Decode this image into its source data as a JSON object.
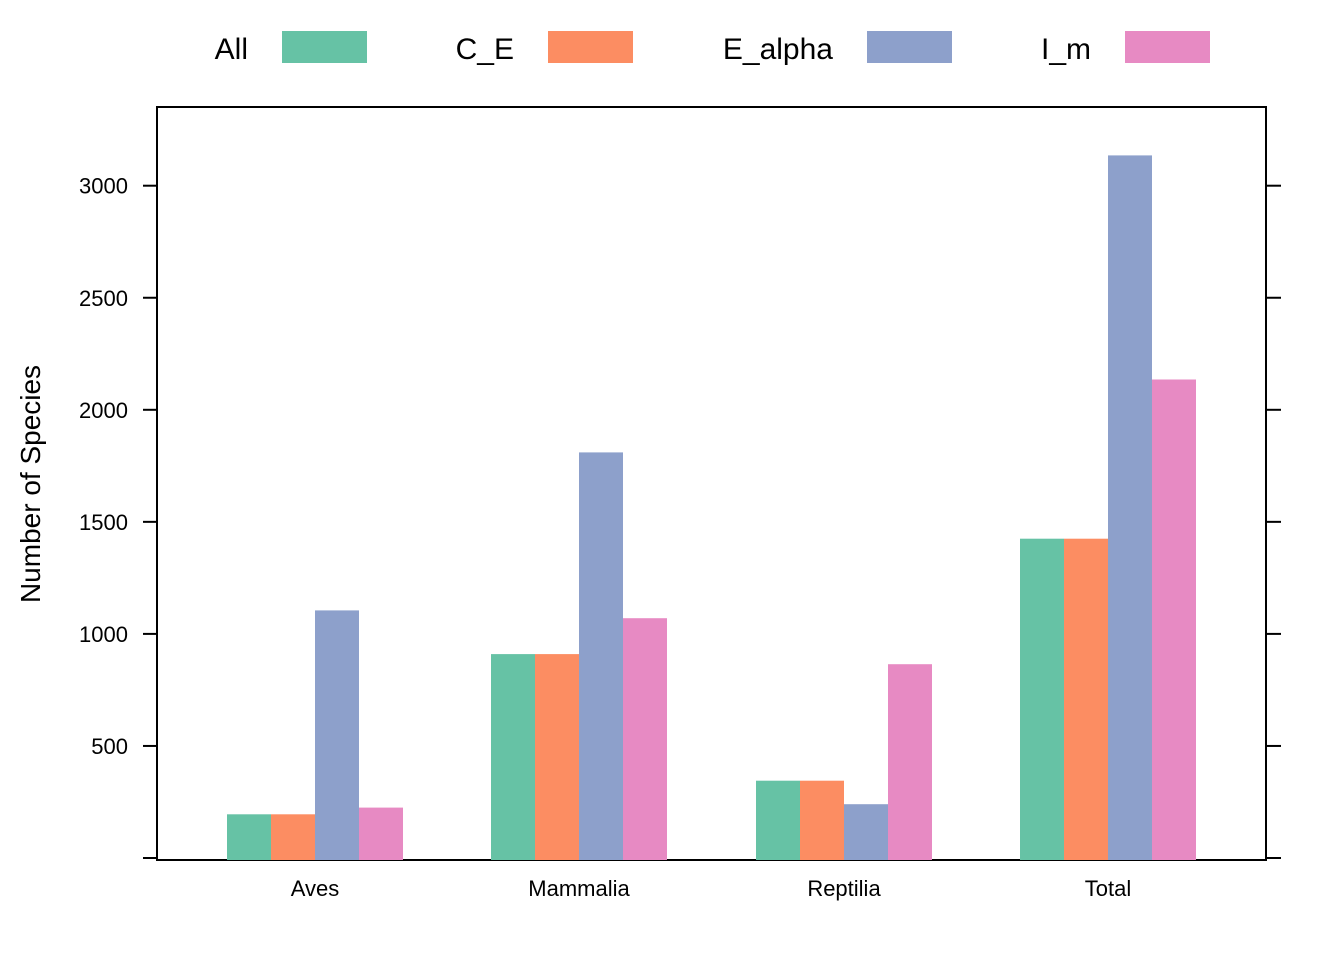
{
  "chart_data": {
    "type": "bar",
    "title": "",
    "xlabel": "",
    "ylabel": "Number of Species",
    "categories": [
      "Aves",
      "Mammalia",
      "Reptilia",
      "Total"
    ],
    "series": [
      {
        "name": "All",
        "color": "#66c2a5",
        "values": [
          195,
          910,
          345,
          1425
        ]
      },
      {
        "name": "C_E",
        "color": "#fc8d62",
        "values": [
          195,
          910,
          345,
          1425
        ]
      },
      {
        "name": "E_alpha",
        "color": "#8da0cb",
        "values": [
          1105,
          1810,
          240,
          3135
        ]
      },
      {
        "name": "I_m",
        "color": "#e78ac3",
        "values": [
          225,
          1070,
          865,
          2135
        ]
      }
    ],
    "yticks": [
      500,
      1000,
      1500,
      2000,
      2500,
      3000
    ],
    "ylim": [
      0,
      3330
    ],
    "legend_position": "top",
    "grid": false
  }
}
